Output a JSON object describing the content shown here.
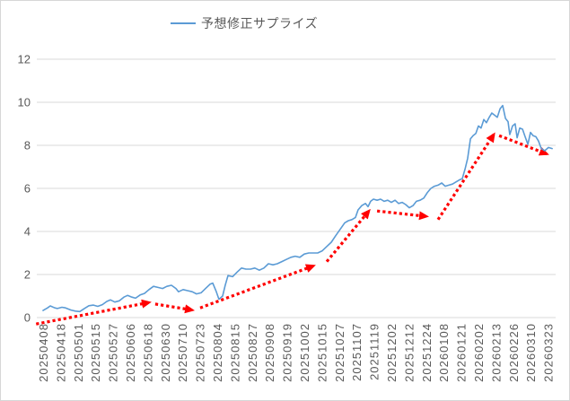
{
  "legend": {
    "label": "予想修正サプライズ"
  },
  "colors": {
    "series": "#5B9BD5",
    "trend": "#FF0000",
    "grid": "#D9D9D9",
    "axis_text": "#595959",
    "frame_border": "#D7D7D7"
  },
  "chart_data": {
    "type": "line",
    "title": "",
    "xlabel": "",
    "ylabel": "",
    "grid": true,
    "legend_position": "top-center",
    "ylim": [
      0,
      12
    ],
    "yticks": [
      0,
      2,
      4,
      6,
      8,
      10,
      12
    ],
    "categories": [
      "20250408",
      "20250418",
      "20250501",
      "20250515",
      "20250527",
      "20250606",
      "20250618",
      "20250630",
      "20250710",
      "20250723",
      "20250804",
      "20250815",
      "20250827",
      "20250908",
      "20250919",
      "20251002",
      "20251015",
      "20251027",
      "20251107",
      "20251119",
      "20251202",
      "20251212",
      "20251224",
      "20260108",
      "20260121",
      "20260202",
      "20260213",
      "20260226",
      "20260310",
      "20260323"
    ],
    "x_unit": "category-index (fractional = trading days between labels)",
    "series": [
      {
        "name": "予想修正サプライズ",
        "color": "#5B9BD5",
        "style": "solid",
        "points": [
          [
            0,
            0.33
          ],
          [
            0.26,
            0.45
          ],
          [
            0.41,
            0.54
          ],
          [
            0.67,
            0.45
          ],
          [
            0.82,
            0.42
          ],
          [
            1.08,
            0.48
          ],
          [
            1.29,
            0.45
          ],
          [
            1.6,
            0.35
          ],
          [
            1.86,
            0.3
          ],
          [
            2.11,
            0.28
          ],
          [
            2.37,
            0.42
          ],
          [
            2.63,
            0.55
          ],
          [
            2.89,
            0.58
          ],
          [
            3.14,
            0.52
          ],
          [
            3.4,
            0.6
          ],
          [
            3.66,
            0.75
          ],
          [
            3.87,
            0.82
          ],
          [
            4.12,
            0.72
          ],
          [
            4.38,
            0.78
          ],
          [
            4.64,
            0.95
          ],
          [
            4.85,
            1.03
          ],
          [
            5.1,
            0.95
          ],
          [
            5.31,
            0.9
          ],
          [
            5.57,
            1.05
          ],
          [
            5.82,
            1.12
          ],
          [
            6.08,
            1.3
          ],
          [
            6.34,
            1.45
          ],
          [
            6.6,
            1.4
          ],
          [
            6.86,
            1.35
          ],
          [
            7.11,
            1.45
          ],
          [
            7.37,
            1.5
          ],
          [
            7.63,
            1.35
          ],
          [
            7.78,
            1.2
          ],
          [
            8.04,
            1.3
          ],
          [
            8.3,
            1.25
          ],
          [
            8.56,
            1.2
          ],
          [
            8.81,
            1.1
          ],
          [
            9.07,
            1.15
          ],
          [
            9.33,
            1.35
          ],
          [
            9.59,
            1.55
          ],
          [
            9.74,
            1.6
          ],
          [
            9.95,
            1.2
          ],
          [
            10.1,
            0.85
          ],
          [
            10.31,
            1.0
          ],
          [
            10.46,
            1.5
          ],
          [
            10.62,
            1.95
          ],
          [
            10.88,
            1.9
          ],
          [
            11.13,
            2.1
          ],
          [
            11.39,
            2.3
          ],
          [
            11.65,
            2.25
          ],
          [
            11.91,
            2.25
          ],
          [
            12.16,
            2.3
          ],
          [
            12.42,
            2.2
          ],
          [
            12.68,
            2.3
          ],
          [
            12.94,
            2.5
          ],
          [
            13.2,
            2.45
          ],
          [
            13.45,
            2.5
          ],
          [
            13.71,
            2.6
          ],
          [
            13.97,
            2.7
          ],
          [
            14.23,
            2.8
          ],
          [
            14.48,
            2.85
          ],
          [
            14.74,
            2.8
          ],
          [
            15,
            2.95
          ],
          [
            15.26,
            3.0
          ],
          [
            15.52,
            3.0
          ],
          [
            15.77,
            3.0
          ],
          [
            16.03,
            3.1
          ],
          [
            16.29,
            3.3
          ],
          [
            16.55,
            3.5
          ],
          [
            16.8,
            3.8
          ],
          [
            17.06,
            4.1
          ],
          [
            17.32,
            4.4
          ],
          [
            17.53,
            4.5
          ],
          [
            17.73,
            4.55
          ],
          [
            17.94,
            4.65
          ],
          [
            18.09,
            5.0
          ],
          [
            18.3,
            5.2
          ],
          [
            18.51,
            5.3
          ],
          [
            18.66,
            5.15
          ],
          [
            18.81,
            5.4
          ],
          [
            18.97,
            5.5
          ],
          [
            19.18,
            5.45
          ],
          [
            19.38,
            5.5
          ],
          [
            19.59,
            5.4
          ],
          [
            19.79,
            5.45
          ],
          [
            20,
            5.35
          ],
          [
            20.21,
            5.45
          ],
          [
            20.41,
            5.3
          ],
          [
            20.62,
            5.35
          ],
          [
            20.82,
            5.25
          ],
          [
            21.03,
            5.1
          ],
          [
            21.24,
            5.2
          ],
          [
            21.44,
            5.4
          ],
          [
            21.65,
            5.45
          ],
          [
            21.86,
            5.55
          ],
          [
            22.06,
            5.8
          ],
          [
            22.27,
            6.0
          ],
          [
            22.47,
            6.1
          ],
          [
            22.68,
            6.15
          ],
          [
            22.89,
            6.25
          ],
          [
            23.09,
            6.1
          ],
          [
            23.3,
            6.15
          ],
          [
            23.51,
            6.2
          ],
          [
            23.71,
            6.3
          ],
          [
            23.92,
            6.4
          ],
          [
            24.07,
            6.45
          ],
          [
            24.23,
            6.9
          ],
          [
            24.38,
            7.4
          ],
          [
            24.54,
            8.3
          ],
          [
            24.69,
            8.45
          ],
          [
            24.85,
            8.55
          ],
          [
            25,
            8.9
          ],
          [
            25.15,
            8.8
          ],
          [
            25.31,
            9.2
          ],
          [
            25.46,
            9.05
          ],
          [
            25.62,
            9.3
          ],
          [
            25.77,
            9.5
          ],
          [
            25.93,
            9.4
          ],
          [
            26.08,
            9.3
          ],
          [
            26.24,
            9.7
          ],
          [
            26.39,
            9.85
          ],
          [
            26.55,
            9.25
          ],
          [
            26.7,
            9.1
          ],
          [
            26.8,
            8.5
          ],
          [
            26.96,
            8.9
          ],
          [
            27.11,
            9.0
          ],
          [
            27.22,
            8.35
          ],
          [
            27.37,
            8.8
          ],
          [
            27.53,
            8.75
          ],
          [
            27.68,
            8.4
          ],
          [
            27.84,
            8.05
          ],
          [
            27.99,
            8.6
          ],
          [
            28.14,
            8.45
          ],
          [
            28.3,
            8.4
          ],
          [
            28.45,
            8.2
          ],
          [
            28.61,
            7.85
          ],
          [
            28.81,
            7.75
          ],
          [
            29.02,
            7.9
          ],
          [
            29.23,
            7.85
          ]
        ]
      },
      {
        "name": "red-trend-arrows",
        "color": "#FF0000",
        "style": "dotted-with-arrowhead",
        "segments": [
          {
            "from": [
              -0.4,
              -0.3
            ],
            "to": [
              6.08,
              0.7
            ]
          },
          {
            "from": [
              6.44,
              0.63
            ],
            "to": [
              8.56,
              0.35
            ]
          },
          {
            "from": [
              9.02,
              0.45
            ],
            "to": [
              15.52,
              2.4
            ]
          },
          {
            "from": [
              16.29,
              2.6
            ],
            "to": [
              18.71,
              4.95
            ]
          },
          {
            "from": [
              19.18,
              4.95
            ],
            "to": [
              22.01,
              4.7
            ]
          },
          {
            "from": [
              22.68,
              4.55
            ],
            "to": [
              25.88,
              8.5
            ]
          },
          {
            "from": [
              26.19,
              8.45
            ],
            "to": [
              28.92,
              7.6
            ]
          }
        ]
      }
    ]
  }
}
